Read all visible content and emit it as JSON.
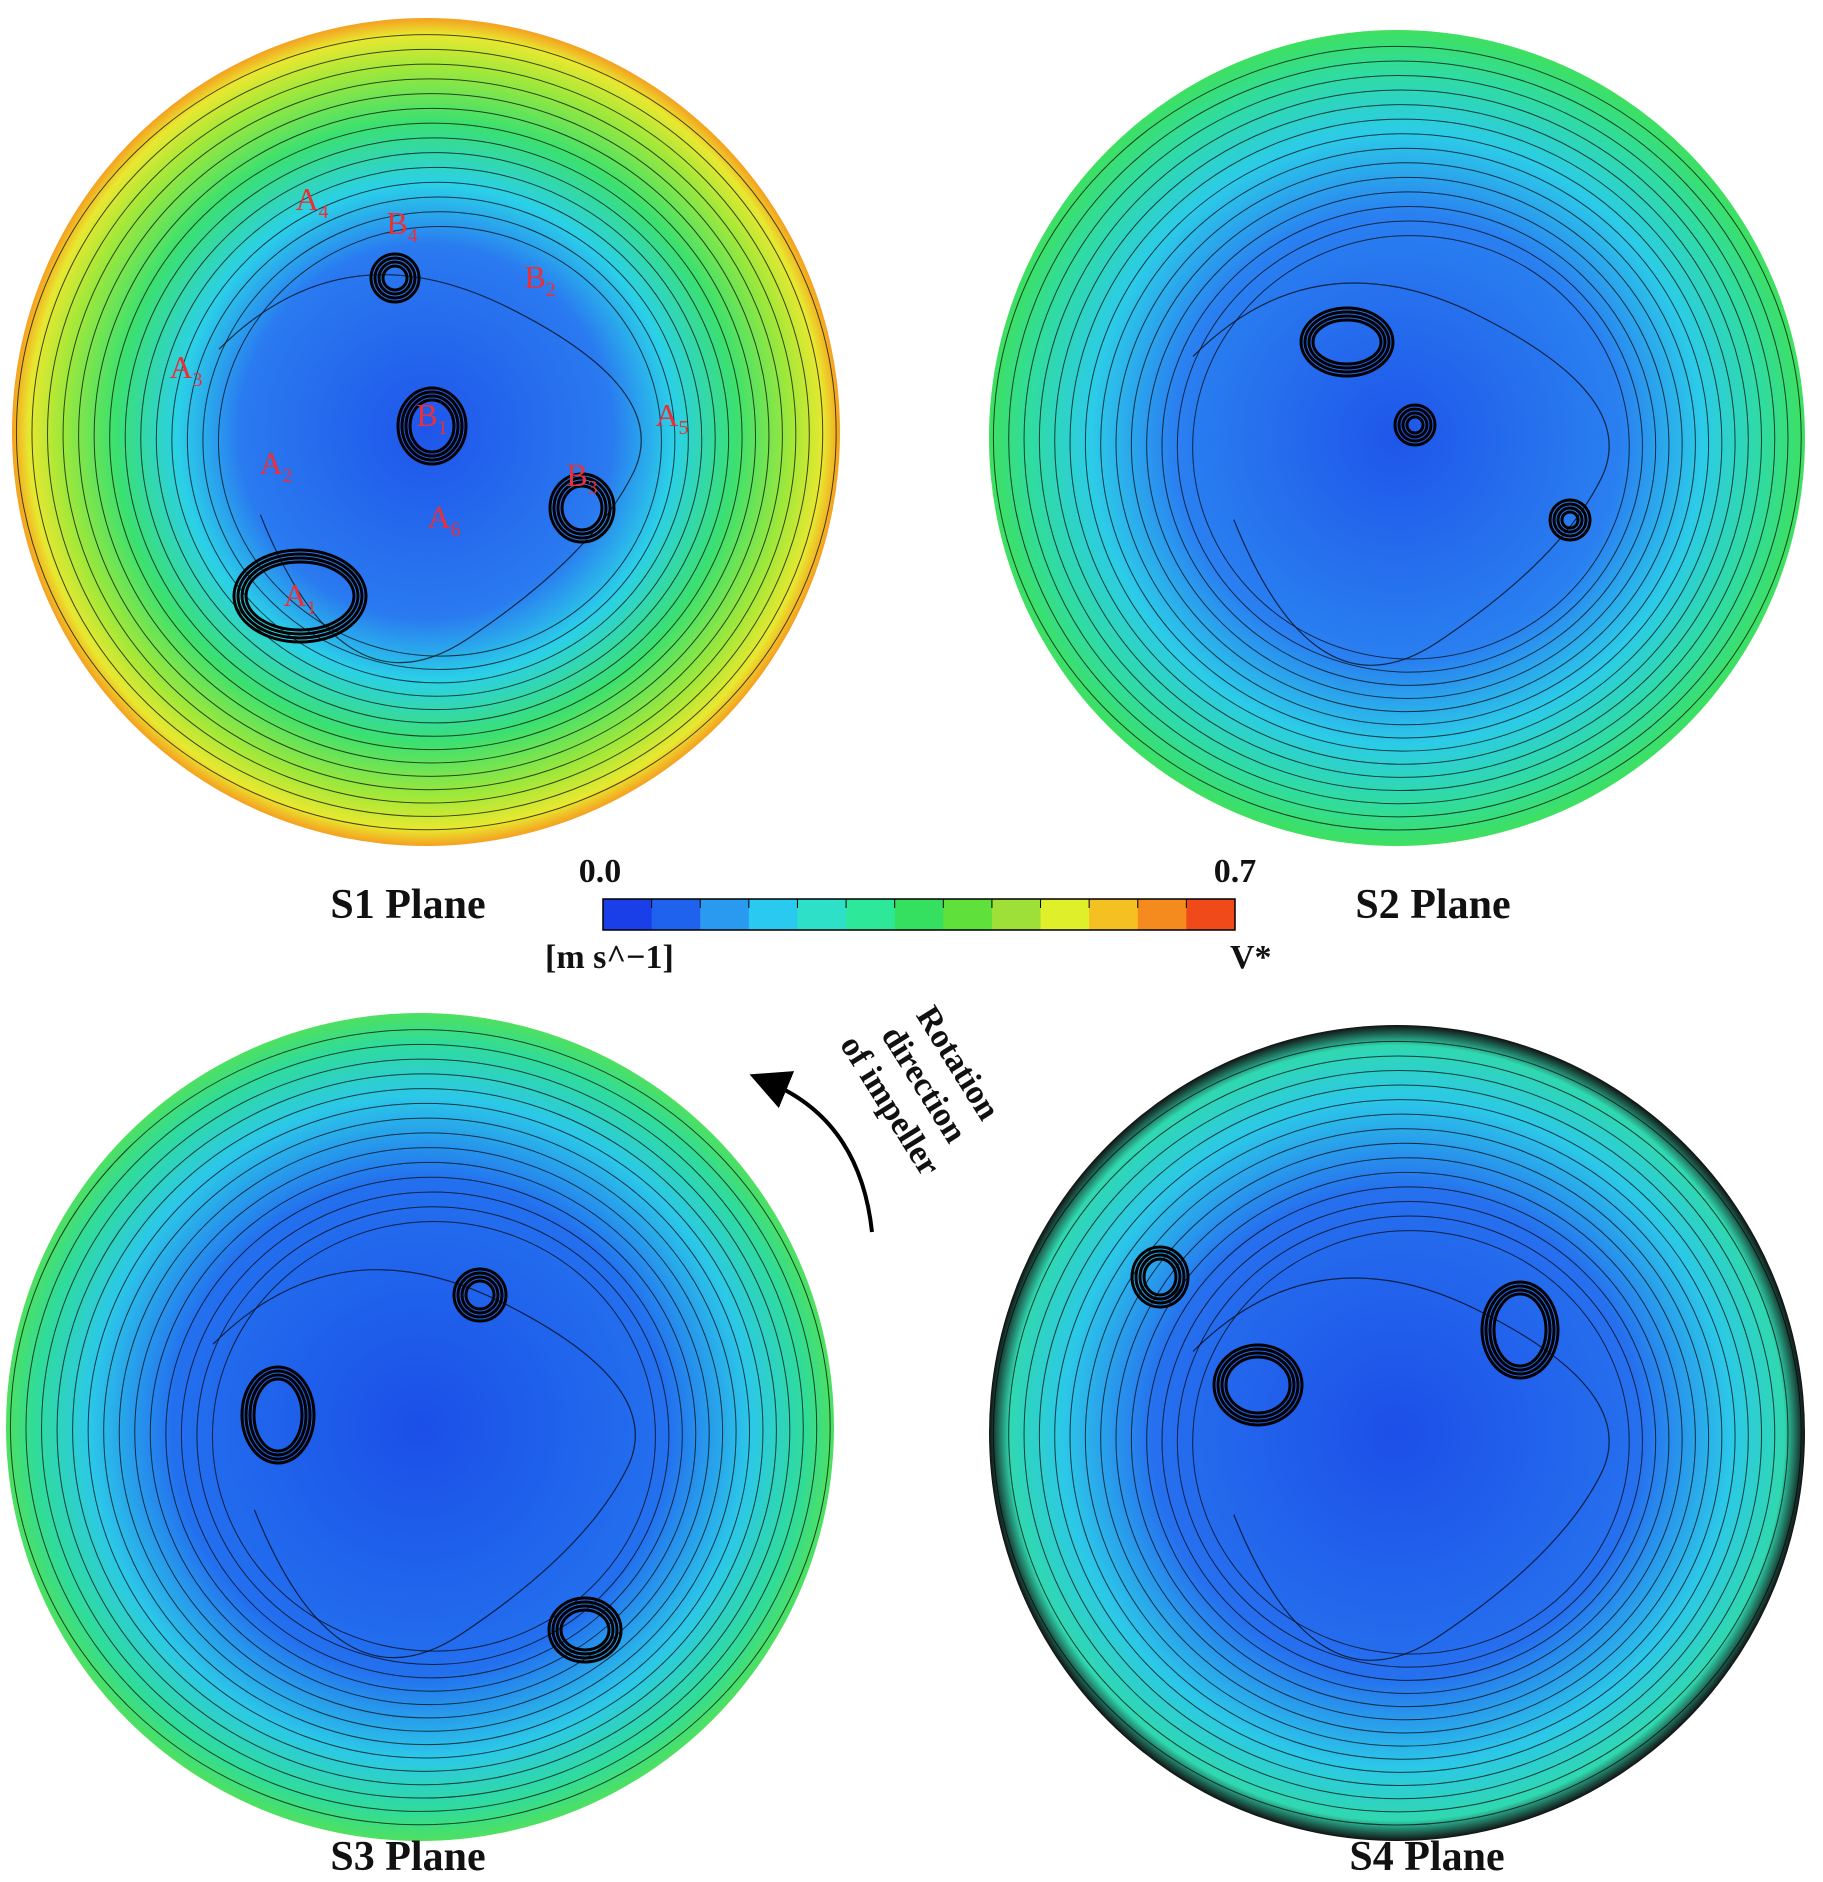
{
  "panels": [
    {
      "label": "S1 Plane",
      "vortices": [
        {
          "letter": "A",
          "sub": "4"
        },
        {
          "letter": "B",
          "sub": "4"
        },
        {
          "letter": "B",
          "sub": "2"
        },
        {
          "letter": "A",
          "sub": "3"
        },
        {
          "letter": "B",
          "sub": "1"
        },
        {
          "letter": "A",
          "sub": "5"
        },
        {
          "letter": "A",
          "sub": "2"
        },
        {
          "letter": "B",
          "sub": "3"
        },
        {
          "letter": "A",
          "sub": "6"
        },
        {
          "letter": "A",
          "sub": "1"
        }
      ]
    },
    {
      "label": "S2 Plane"
    },
    {
      "label": "S3 Plane"
    },
    {
      "label": "S4 Plane"
    }
  ],
  "colorbar": {
    "min": "0.0",
    "max": "0.7",
    "unit": "[m s^−1]",
    "variable": "V*"
  },
  "annotation": {
    "lines": [
      "Rotation",
      "direction",
      "of impeller"
    ]
  }
}
